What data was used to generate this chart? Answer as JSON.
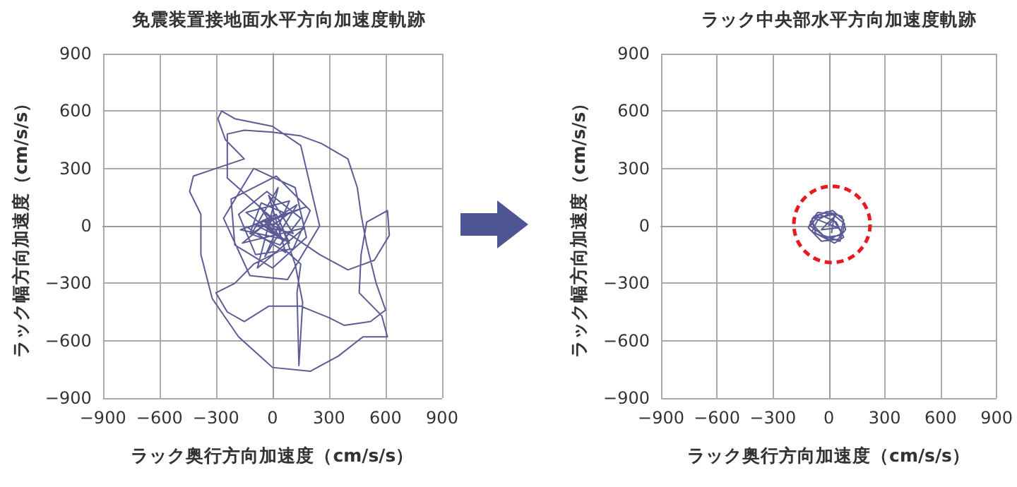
{
  "chart_data": [
    {
      "type": "line",
      "title": "免震装置接地面水平方向加速度軌跡",
      "xlabel": "ラック奥行方向加速度（cm/s/s）",
      "ylabel": "ラック幅方向加速度（cm/s/s）",
      "series": [
        {
          "color": "#5b5b97",
          "x": [
            0,
            80,
            -60,
            -120,
            40,
            150,
            -30,
            -180,
            -90,
            110,
            200,
            20,
            -220,
            -200,
            0,
            180,
            120,
            -100,
            -260,
            -120,
            80,
            250,
            150,
            0,
            -200,
            -270,
            -290,
            -250,
            -150,
            -300,
            -420,
            -440,
            -380,
            -380,
            -320,
            -180,
            0,
            200,
            350,
            480,
            610,
            580,
            460,
            470,
            500,
            610,
            620,
            540,
            400,
            250,
            100,
            -50,
            60,
            -140,
            90,
            -40,
            130,
            -110,
            30,
            -80,
            170,
            -160,
            0,
            -240,
            -240,
            -150,
            0,
            150,
            260,
            400,
            450,
            470,
            500,
            550,
            600,
            520,
            380,
            300,
            150,
            -20,
            -150,
            -240,
            -300,
            -200,
            -100,
            60,
            150,
            130,
            140,
            160,
            120,
            60,
            -60,
            40,
            -100,
            110,
            -20,
            70,
            -130,
            20,
            90,
            -70,
            0,
            180,
            -170,
            60,
            -30,
            10
          ],
          "values": [
            0,
            60,
            120,
            -40,
            -100,
            40,
            180,
            60,
            -150,
            -120,
            80,
            260,
            140,
            -100,
            -220,
            -60,
            200,
            300,
            40,
            -260,
            -280,
            0,
            420,
            520,
            560,
            600,
            560,
            450,
            350,
            300,
            260,
            180,
            60,
            -150,
            -380,
            -580,
            -740,
            -760,
            -680,
            -580,
            -580,
            -470,
            -350,
            -150,
            20,
            80,
            -50,
            -180,
            -230,
            -150,
            -50,
            30,
            -80,
            70,
            130,
            -160,
            110,
            -40,
            200,
            -220,
            -10,
            -90,
            40,
            250,
            480,
            500,
            490,
            470,
            430,
            350,
            200,
            60,
            -100,
            -300,
            -440,
            -500,
            -520,
            -480,
            -420,
            -420,
            -500,
            -450,
            -350,
            -300,
            -200,
            -120,
            -200,
            -350,
            -730,
            -400,
            -200,
            -30,
            90,
            -60,
            10,
            -40,
            160,
            -140,
            -10,
            60,
            -90,
            20,
            30,
            100,
            -20,
            -70,
            0,
            10
          ]
        }
      ],
      "xlim": [
        -900,
        900
      ],
      "ylim": [
        -900,
        900
      ],
      "xticks": [
        {
          "value": -900,
          "label": "−900"
        },
        {
          "value": -600,
          "label": "−600"
        },
        {
          "value": -300,
          "label": "−300"
        },
        0,
        300,
        600,
        900
      ],
      "yticks": [
        {
          "value": -900,
          "label": "−900"
        },
        {
          "value": -600,
          "label": "−600"
        },
        {
          "value": -300,
          "label": "−300"
        },
        0,
        300,
        600,
        900
      ],
      "grid": true,
      "marker": "none",
      "line_style": "solid"
    },
    {
      "type": "line",
      "title": "ラック中央部水平方向加速度軌跡",
      "xlabel": "ラック奥行方向加速度（cm/s/s）",
      "ylabel": "ラック幅方向加速度（cm/s/s）",
      "series": [
        {
          "color": "#5b5b97",
          "x": [
            0,
            40,
            -60,
            -100,
            -20,
            60,
            80,
            20,
            -80,
            -110,
            -40,
            50,
            90,
            70,
            -10,
            -90,
            -70,
            30,
            80,
            40,
            -50,
            -100,
            -30,
            60,
            85,
            10,
            -60,
            -90,
            0,
            70,
            20,
            -40,
            50,
            -80,
            30,
            15
          ],
          "values": [
            0,
            60,
            70,
            20,
            -60,
            -50,
            30,
            80,
            50,
            -10,
            -80,
            -70,
            -20,
            50,
            75,
            40,
            -40,
            -90,
            -60,
            20,
            60,
            0,
            -50,
            -80,
            10,
            70,
            30,
            -30,
            -70,
            -40,
            40,
            -20,
            -10,
            40,
            60,
            -35
          ]
        }
      ],
      "xlim": [
        -900,
        900
      ],
      "ylim": [
        -900,
        900
      ],
      "xticks": [
        {
          "value": -900,
          "label": "−900"
        },
        {
          "value": -600,
          "label": "−600"
        },
        {
          "value": -300,
          "label": "−300"
        },
        0,
        300,
        600,
        900
      ],
      "yticks": [
        {
          "value": -900,
          "label": "−900"
        },
        {
          "value": -600,
          "label": "−600"
        },
        {
          "value": -300,
          "label": "−300"
        },
        0,
        300,
        600,
        900
      ],
      "grid": true,
      "marker": "none",
      "line_style": "solid"
    }
  ]
}
